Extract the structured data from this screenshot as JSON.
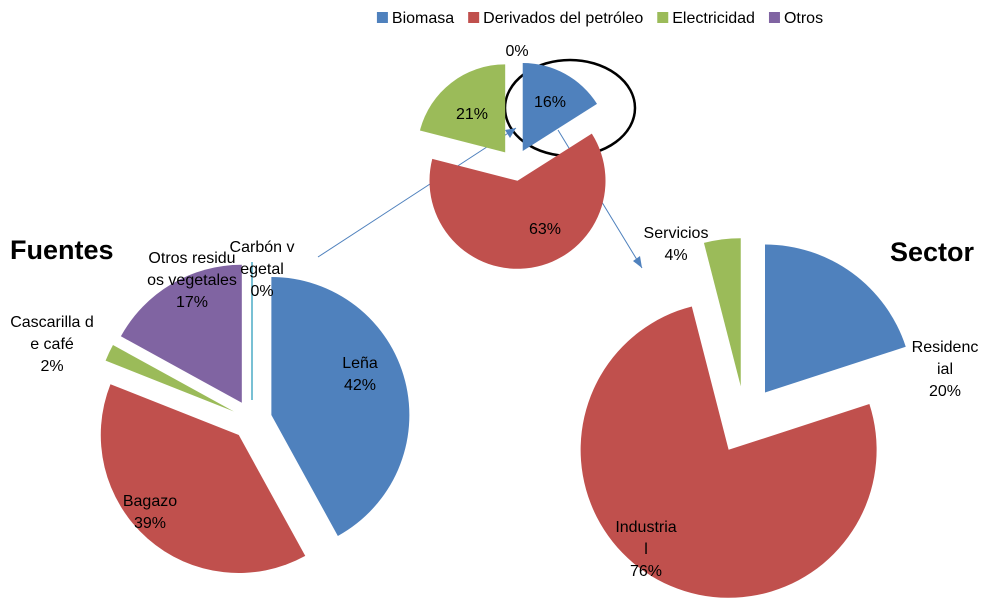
{
  "chart_data": [
    {
      "type": "pie",
      "legend": "top",
      "categories": [
        "Biomasa",
        "Derivados del petróleo",
        "Electricidad",
        "Otros"
      ],
      "values": [
        16,
        63,
        21,
        0
      ],
      "value_labels": [
        "16%",
        "63%",
        "21%",
        "0%"
      ],
      "colors": [
        "#4f81bd",
        "#c0504d",
        "#9bbb59",
        "#8064a2"
      ]
    },
    {
      "type": "pie",
      "title": "Fuentes",
      "categories": [
        "Leña",
        "Bagazo",
        "Cascarilla de café",
        "Otros residuos vegetales",
        "Carbón vegetal"
      ],
      "values": [
        42,
        39,
        2,
        17,
        0
      ],
      "value_labels": [
        "42%",
        "39%",
        "2%",
        "17%",
        "0%"
      ],
      "colors": [
        "#4f81bd",
        "#c0504d",
        "#9bbb59",
        "#8064a2",
        "#4bacc6"
      ]
    },
    {
      "type": "pie",
      "title": "Sector",
      "categories": [
        "Residencial",
        "Industrial",
        "Servicios"
      ],
      "values": [
        20,
        76,
        4
      ],
      "value_labels": [
        "20%",
        "76%",
        "4%"
      ],
      "colors": [
        "#4f81bd",
        "#c0504d",
        "#9bbb59"
      ]
    }
  ]
}
